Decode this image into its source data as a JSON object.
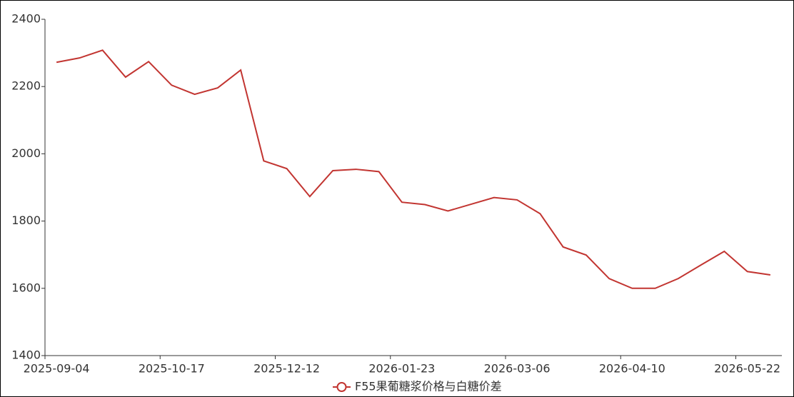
{
  "chart_data": {
    "type": "line",
    "categories": [
      "2025-09-04",
      null,
      null,
      null,
      null,
      "2025-10-17",
      null,
      null,
      null,
      null,
      "2025-12-12",
      null,
      null,
      null,
      null,
      "2026-01-23",
      null,
      null,
      null,
      null,
      "2026-03-06",
      null,
      null,
      null,
      null,
      "2026-04-10",
      null,
      null,
      null,
      null,
      "2026-05-22",
      null
    ],
    "series": [
      {
        "name": "F55果葡糖浆价格与白糖价差",
        "color": "#c23531",
        "values": [
          2272,
          2285,
          2308,
          2228,
          2274,
          2204,
          2177,
          2196,
          2249,
          1979,
          1956,
          1873,
          1950,
          1954,
          1947,
          1856,
          1849,
          1830,
          1850,
          1870,
          1863,
          1822,
          1723,
          1699,
          1629,
          1600,
          1600,
          1629,
          1670,
          1710,
          1650,
          1640
        ]
      }
    ],
    "ylim": [
      1400,
      2400
    ],
    "yticks": [
      1400,
      1600,
      1800,
      2000,
      2200,
      2400
    ],
    "grid": false,
    "legend": "bottom"
  }
}
